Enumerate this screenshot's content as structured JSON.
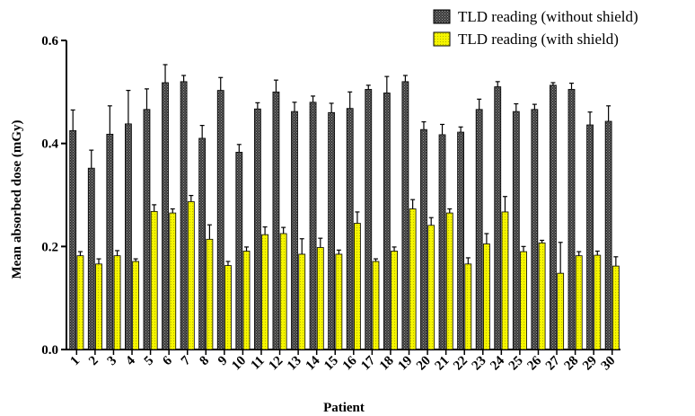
{
  "chart_data": {
    "type": "bar",
    "title": "",
    "xlabel": "Patient",
    "ylabel": "Mean absorbed dose (mGy)",
    "ylim": [
      0,
      0.6
    ],
    "yticks": [
      "0.0",
      "0.2",
      "0.4",
      "0.6"
    ],
    "legend_position": "top-right",
    "grid": false,
    "categories": [
      "1",
      "2",
      "3",
      "4",
      "5",
      "6",
      "7",
      "8",
      "9",
      "10",
      "11",
      "12",
      "13",
      "14",
      "15",
      "16",
      "17",
      "18",
      "19",
      "20",
      "21",
      "22",
      "23",
      "24",
      "25",
      "26",
      "27",
      "28",
      "29",
      "30"
    ],
    "series": [
      {
        "name": "TLD reading (without shield)",
        "color": "#2b2b2b",
        "pattern": "dark-crosshatch",
        "values": [
          0.425,
          0.352,
          0.418,
          0.438,
          0.466,
          0.518,
          0.52,
          0.41,
          0.503,
          0.383,
          0.467,
          0.5,
          0.462,
          0.48,
          0.46,
          0.468,
          0.505,
          0.498,
          0.52,
          0.427,
          0.417,
          0.422,
          0.466,
          0.51,
          0.462,
          0.466,
          0.513,
          0.505,
          0.436,
          0.443
        ],
        "errors": [
          0.04,
          0.035,
          0.055,
          0.065,
          0.04,
          0.035,
          0.012,
          0.025,
          0.025,
          0.015,
          0.012,
          0.023,
          0.018,
          0.012,
          0.018,
          0.032,
          0.008,
          0.032,
          0.012,
          0.015,
          0.02,
          0.01,
          0.02,
          0.01,
          0.015,
          0.01,
          0.005,
          0.012,
          0.025,
          0.03
        ]
      },
      {
        "name": "TLD reading (with shield)",
        "color": "#f2f200",
        "pattern": "yellow-dotted",
        "values": [
          0.182,
          0.166,
          0.182,
          0.171,
          0.268,
          0.265,
          0.287,
          0.214,
          0.163,
          0.191,
          0.223,
          0.225,
          0.185,
          0.198,
          0.185,
          0.245,
          0.171,
          0.191,
          0.273,
          0.241,
          0.265,
          0.166,
          0.205,
          0.267,
          0.19,
          0.207,
          0.148,
          0.182,
          0.183,
          0.162
        ],
        "errors": [
          0.008,
          0.01,
          0.01,
          0.005,
          0.013,
          0.008,
          0.012,
          0.028,
          0.008,
          0.008,
          0.015,
          0.012,
          0.03,
          0.018,
          0.008,
          0.022,
          0.005,
          0.008,
          0.018,
          0.015,
          0.008,
          0.012,
          0.02,
          0.03,
          0.01,
          0.005,
          0.06,
          0.008,
          0.008,
          0.018
        ]
      }
    ]
  }
}
